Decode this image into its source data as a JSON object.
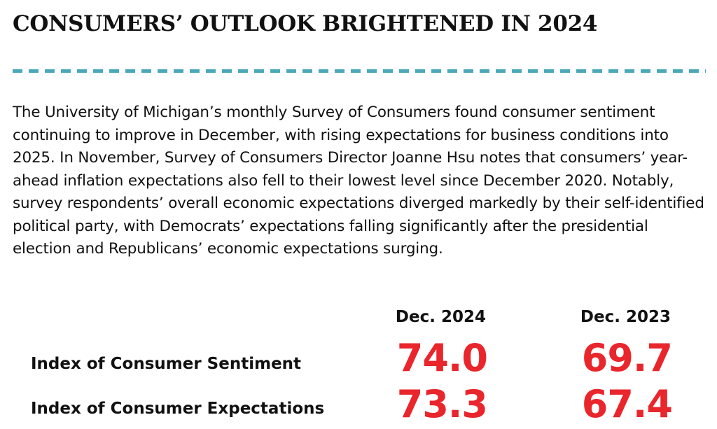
{
  "title": "CONSUMERS’ OUTLOOK BRIGHTENED IN 2024",
  "body": "The University of Michigan’s monthly Survey of Consumers found consumer sentiment continuing to improve in December, with rising expectations for business conditions into 2025. In November, Survey of Consumers Director Joanne Hsu notes that consumers’ year-ahead inflation expectations also fell to their lowest level since December 2020. Notably, survey respondents’ overall economic expectations diverged markedly by their self-identified political party, with Democrats’ expectations falling significantly after the presidential election and Republicans’ economic expectations surging.",
  "table": {
    "columns": [
      "Dec. 2024",
      "Dec. 2023"
    ],
    "rows": [
      {
        "label": "Index of Consumer Sentiment",
        "values": [
          "74.0",
          "69.7"
        ]
      },
      {
        "label": "Index of Consumer Expectations",
        "values": [
          "73.3",
          "67.4"
        ]
      }
    ]
  },
  "colors": {
    "accent_red": "#e8262c",
    "divider_teal": "#4aa8b8"
  }
}
